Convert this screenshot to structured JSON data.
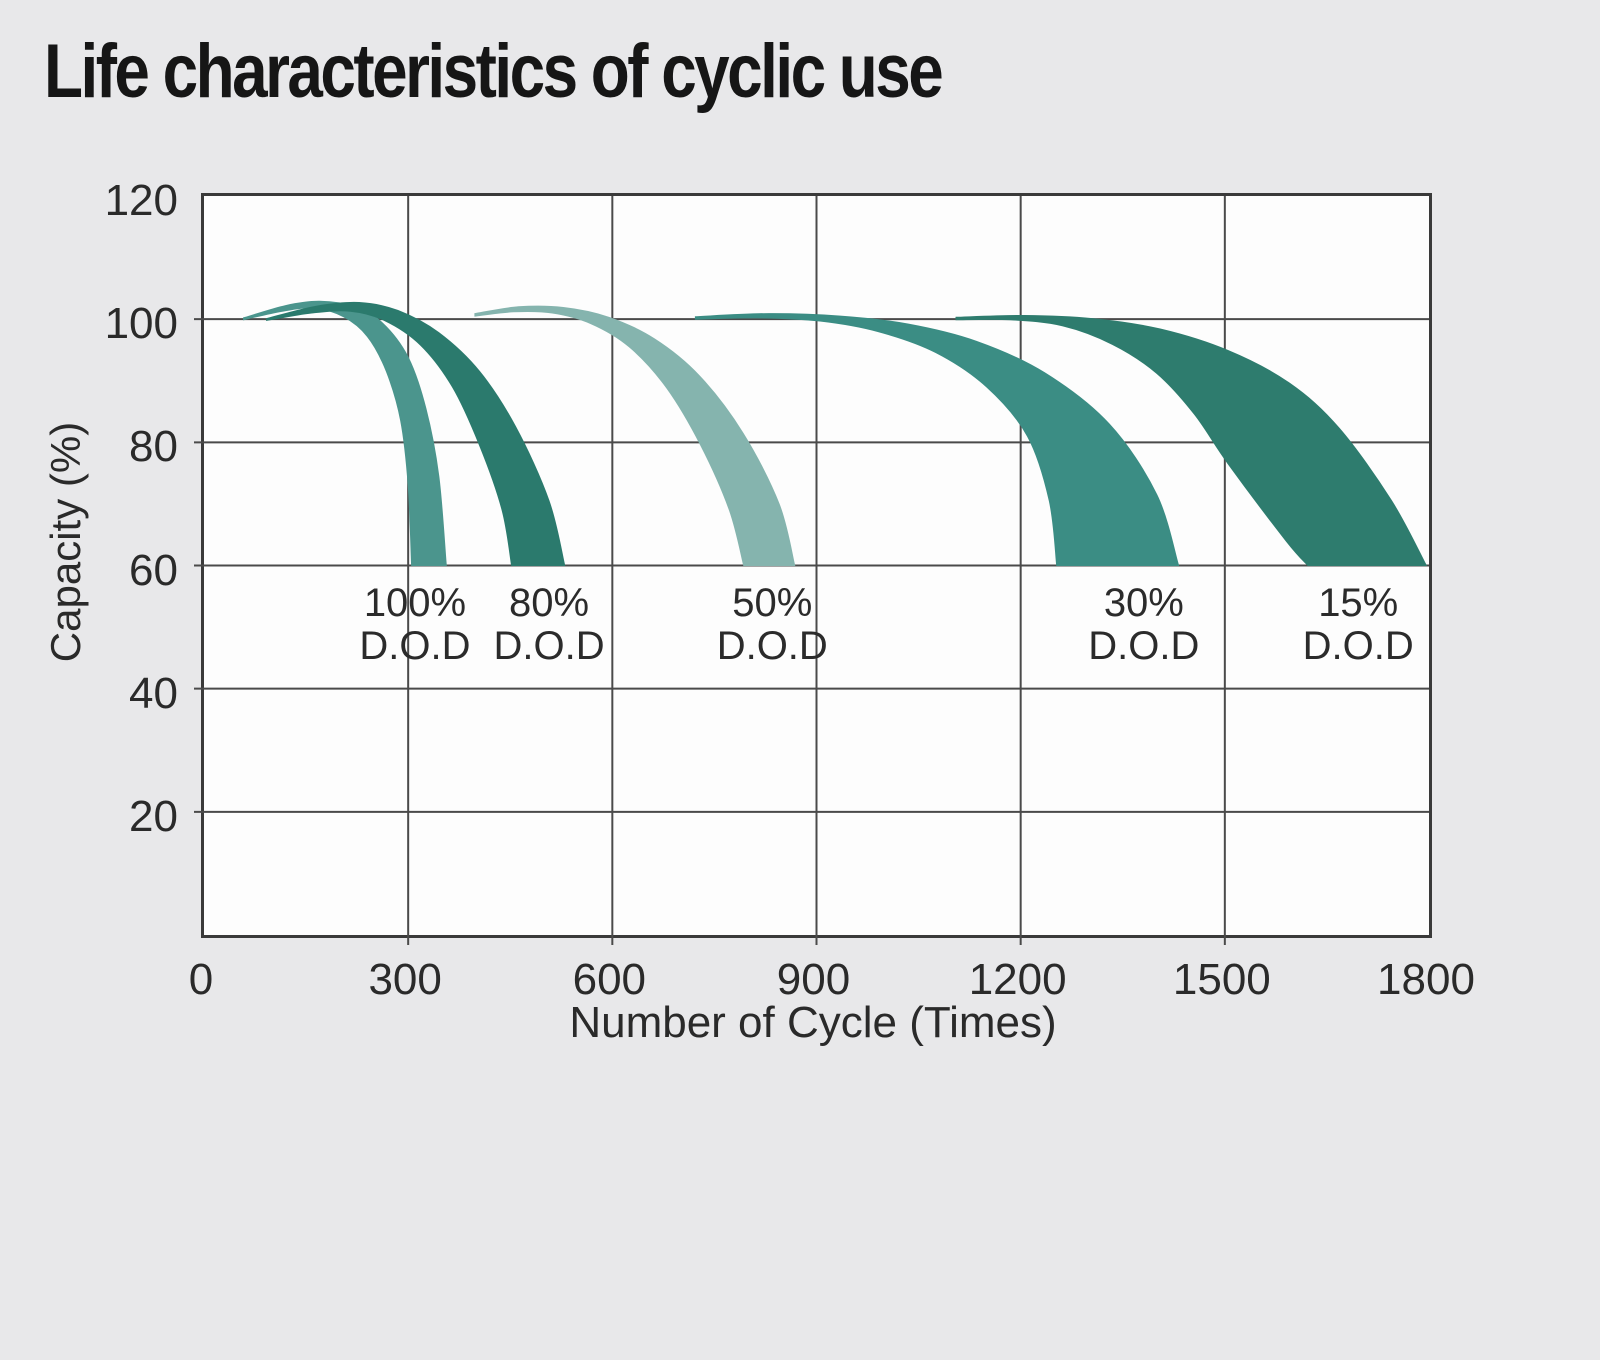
{
  "title": "Life characteristics of cyclic use",
  "colors": {
    "background": "#e8e8ea",
    "plot_background": "#fdfdfd",
    "grid": "#4a4a4a",
    "border": "#3a3a3a",
    "text": "#2a2a2a",
    "title_text": "#161616"
  },
  "chart_data": {
    "type": "area",
    "title": "Life characteristics of cyclic use",
    "xlabel": "Number of Cycle (Times)",
    "ylabel": "Capacity (%)",
    "xlim": [
      0,
      1800
    ],
    "ylim": [
      0,
      120
    ],
    "x_ticks": [
      0,
      300,
      600,
      900,
      1200,
      1500,
      1800
    ],
    "y_ticks": [
      120,
      100,
      80,
      60,
      40,
      20
    ],
    "grid": true,
    "legend_position": "inside-bands",
    "note": "Each series is a ribbon band: capacity fade vs charge/discharge cycles for a depth-of-discharge; bands start near 100% capacity, overshoot slightly, and are cut off at 60% capacity.",
    "series": [
      {
        "name": "100% D.O.D",
        "label_line1": "100%",
        "label_line2": "D.O.D",
        "color": "#4b958d",
        "label_position_cycle": 310,
        "cycles_to_60pct_range": [
          305,
          356
        ],
        "upper": [
          [
            58,
            100.2
          ],
          [
            120,
            102.2
          ],
          [
            170,
            102.9
          ],
          [
            222,
            102.0
          ],
          [
            262,
            99.4
          ],
          [
            300,
            93.8
          ],
          [
            326,
            85.5
          ],
          [
            345,
            74.5
          ],
          [
            356,
            60
          ]
        ],
        "lower": [
          [
            58,
            99.9
          ],
          [
            115,
            101.3
          ],
          [
            162,
            101.8
          ],
          [
            205,
            100.4
          ],
          [
            240,
            97.2
          ],
          [
            268,
            91.5
          ],
          [
            289,
            83.5
          ],
          [
            300,
            73.0
          ],
          [
            305,
            60
          ]
        ]
      },
      {
        "name": "80% D.O.D",
        "label_line1": "80%",
        "label_line2": "D.O.D",
        "color": "#2b7a6d",
        "label_position_cycle": 507,
        "cycles_to_60pct_range": [
          452,
          530
        ],
        "upper": [
          [
            92,
            100.1
          ],
          [
            165,
            102.1
          ],
          [
            228,
            102.7
          ],
          [
            285,
            101.4
          ],
          [
            345,
            97.8
          ],
          [
            405,
            91.5
          ],
          [
            458,
            82.5
          ],
          [
            507,
            70.5
          ],
          [
            530,
            60
          ]
        ],
        "lower": [
          [
            92,
            99.8
          ],
          [
            158,
            101.0
          ],
          [
            215,
            101.3
          ],
          [
            265,
            99.8
          ],
          [
            318,
            95.8
          ],
          [
            365,
            89.0
          ],
          [
            405,
            79.5
          ],
          [
            438,
            69.0
          ],
          [
            452,
            60
          ]
        ]
      },
      {
        "name": "50% D.O.D",
        "label_line1": "50%",
        "label_line2": "D.O.D",
        "color": "#85b4ae",
        "label_position_cycle": 835,
        "cycles_to_60pct_range": [
          793,
          868
        ],
        "upper": [
          [
            398,
            100.9
          ],
          [
            462,
            102.0
          ],
          [
            528,
            101.9
          ],
          [
            595,
            100.3
          ],
          [
            662,
            96.8
          ],
          [
            728,
            90.8
          ],
          [
            792,
            81.5
          ],
          [
            845,
            70.0
          ],
          [
            868,
            60
          ]
        ],
        "lower": [
          [
            398,
            100.5
          ],
          [
            455,
            101.2
          ],
          [
            512,
            101.0
          ],
          [
            568,
            99.3
          ],
          [
            625,
            95.5
          ],
          [
            680,
            88.8
          ],
          [
            730,
            79.5
          ],
          [
            772,
            69.0
          ],
          [
            793,
            60
          ]
        ]
      },
      {
        "name": "30% D.O.D",
        "label_line1": "30%",
        "label_line2": "D.O.D",
        "color": "#3b8d84",
        "label_position_cycle": 1381,
        "cycles_to_60pct_range": [
          1253,
          1432
        ],
        "upper": [
          [
            722,
            100.4
          ],
          [
            830,
            100.9
          ],
          [
            935,
            100.5
          ],
          [
            1035,
            99.2
          ],
          [
            1135,
            96.4
          ],
          [
            1235,
            91.3
          ],
          [
            1330,
            83.0
          ],
          [
            1400,
            71.5
          ],
          [
            1432,
            60
          ]
        ],
        "lower": [
          [
            722,
            100.0
          ],
          [
            815,
            100.2
          ],
          [
            905,
            99.7
          ],
          [
            990,
            98.0
          ],
          [
            1075,
            94.6
          ],
          [
            1150,
            89.0
          ],
          [
            1210,
            81.0
          ],
          [
            1242,
            70.5
          ],
          [
            1253,
            60
          ]
        ]
      },
      {
        "name": "15% D.O.D",
        "label_line1": "15%",
        "label_line2": "D.O.D",
        "color": "#2e7c6e",
        "label_position_cycle": 1696,
        "cycles_to_60pct_range": [
          1622,
          1796
        ],
        "upper": [
          [
            1105,
            100.3
          ],
          [
            1205,
            100.6
          ],
          [
            1305,
            100.1
          ],
          [
            1405,
            98.4
          ],
          [
            1505,
            94.9
          ],
          [
            1595,
            89.6
          ],
          [
            1668,
            82.3
          ],
          [
            1745,
            70.5
          ],
          [
            1796,
            60
          ]
        ],
        "lower": [
          [
            1105,
            99.9
          ],
          [
            1185,
            99.9
          ],
          [
            1262,
            98.9
          ],
          [
            1335,
            95.9
          ],
          [
            1400,
            91.2
          ],
          [
            1455,
            84.6
          ],
          [
            1505,
            76.5
          ],
          [
            1590,
            64.0
          ],
          [
            1622,
            60
          ]
        ]
      }
    ]
  }
}
